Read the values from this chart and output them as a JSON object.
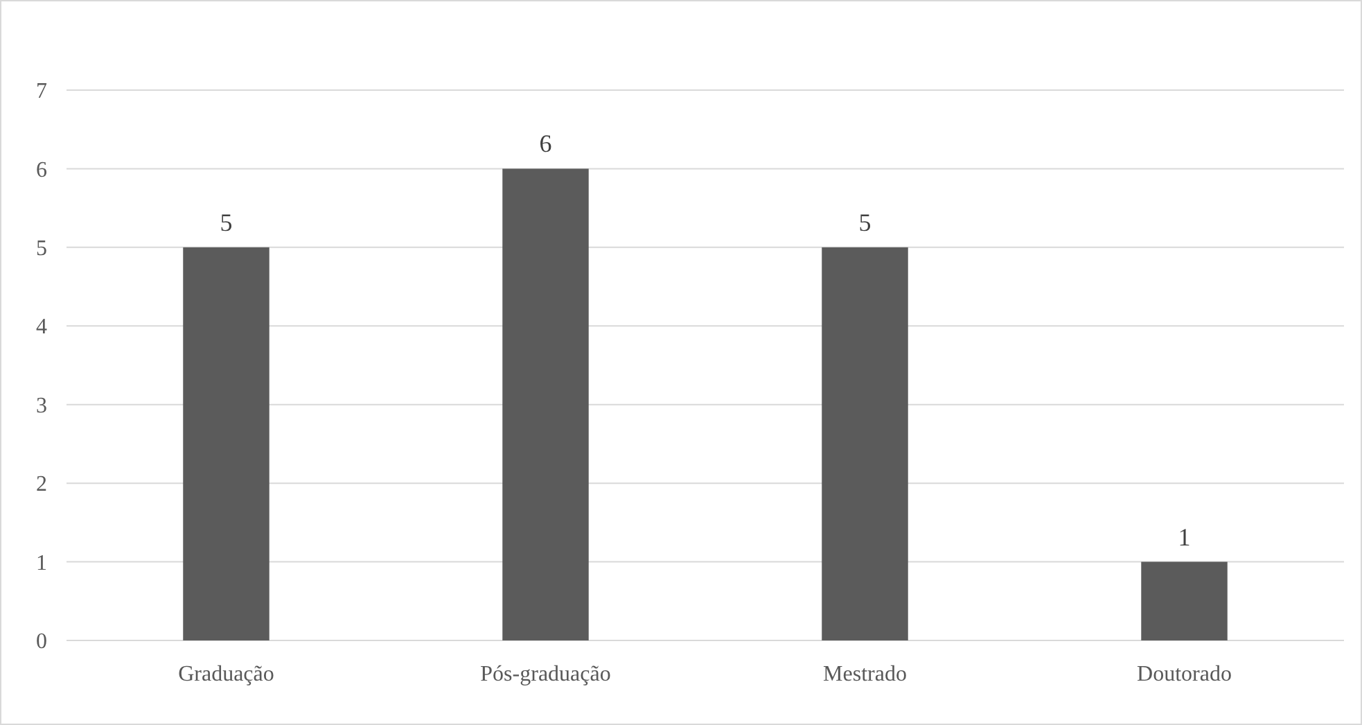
{
  "chart_data": {
    "type": "bar",
    "categories": [
      "Graduação",
      "Pós-graduação",
      "Mestrado",
      "Doutorado"
    ],
    "values": [
      5,
      6,
      5,
      1
    ],
    "color": "#5b5b5b",
    "ylim": [
      0,
      7
    ],
    "yticks": [
      0,
      1,
      2,
      3,
      4,
      5,
      6,
      7
    ],
    "grid": "y",
    "data_labels": true
  }
}
